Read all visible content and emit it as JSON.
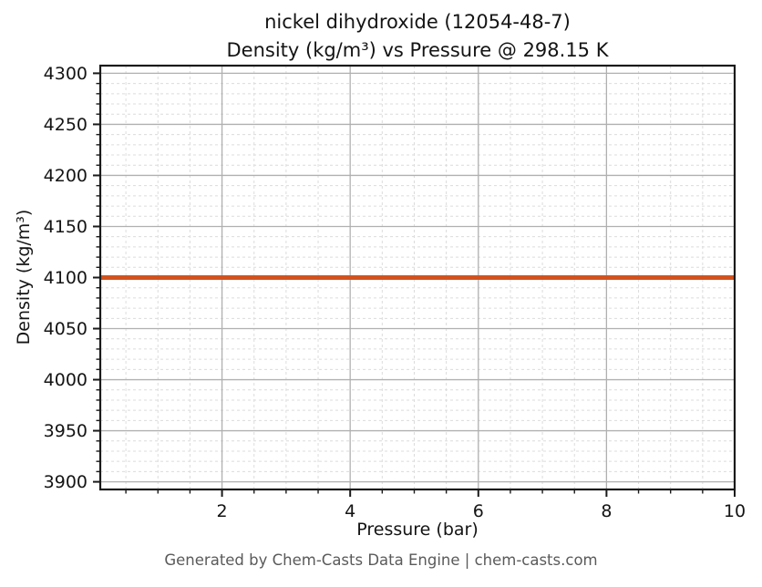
{
  "footer": {
    "text": "Generated by Chem-Casts Data Engine | chem-casts.com"
  },
  "chart_data": {
    "type": "line",
    "title": "nickel dihydroxide (12054-48-7)\nDensity (kg/m³) vs Pressure @ 298.15 K",
    "title_line1": "nickel dihydroxide (12054-48-7)",
    "title_line2": "Density (kg/m³) vs Pressure @ 298.15 K",
    "xlabel": "Pressure (bar)",
    "ylabel": "Density (kg/m³)",
    "x": [
      0.1,
      1,
      2,
      3,
      4,
      5,
      6,
      7,
      8,
      9,
      10
    ],
    "series": [
      {
        "name": "Density",
        "values": [
          4100,
          4100,
          4100,
          4100,
          4100,
          4100,
          4100,
          4100,
          4100,
          4100,
          4100
        ]
      }
    ],
    "xlim": [
      0.1,
      10
    ],
    "ylim": [
      3892.5,
      4307.5
    ],
    "xticks": [
      2,
      4,
      6,
      8,
      10
    ],
    "yticks": [
      3900,
      3950,
      4000,
      4050,
      4100,
      4150,
      4200,
      4250,
      4300
    ],
    "x_minor_step": 0.5,
    "y_minor_step": 10,
    "grid": {
      "on": true,
      "major_color": "#b0b0b0",
      "minor_color": "#dcdcdc",
      "minor_dash": "3,3"
    },
    "line_color": "#d2521e",
    "line_width": 5,
    "spine_color": "#1a1a1a",
    "tick_label_color": "#141414",
    "legend": "none"
  }
}
